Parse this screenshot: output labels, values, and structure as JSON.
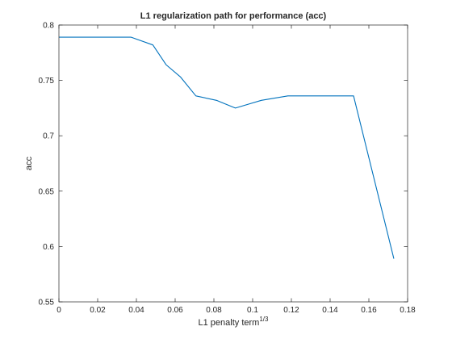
{
  "chart_data": {
    "type": "line",
    "title": "L1 regularization path for performance (acc)",
    "xlabel": "L1 penalty term",
    "xlabel_superscript": "1/3",
    "ylabel": "acc",
    "xlim": [
      0,
      0.18
    ],
    "ylim": [
      0.55,
      0.8
    ],
    "xticks": [
      0,
      0.02,
      0.04,
      0.06,
      0.08,
      0.1,
      0.12,
      0.14,
      0.16,
      0.18
    ],
    "xtick_labels": [
      "0",
      "0.02",
      "0.04",
      "0.06",
      "0.08",
      "0.1",
      "0.12",
      "0.14",
      "0.16",
      "0.18"
    ],
    "yticks": [
      0.55,
      0.6,
      0.65,
      0.7,
      0.75,
      0.8
    ],
    "ytick_labels": [
      "0.55",
      "0.6",
      "0.65",
      "0.7",
      "0.75",
      "0.8"
    ],
    "grid": false,
    "series": [
      {
        "color": "#0072bd",
        "x": [
          0,
          0.0185,
          0.0296,
          0.0373,
          0.0485,
          0.0554,
          0.0628,
          0.0707,
          0.0813,
          0.0911,
          0.1045,
          0.1182,
          0.1414,
          0.1521,
          0.1729
        ],
        "y": [
          0.789,
          0.789,
          0.789,
          0.789,
          0.782,
          0.764,
          0.753,
          0.736,
          0.732,
          0.725,
          0.732,
          0.736,
          0.736,
          0.736,
          0.589
        ]
      }
    ]
  }
}
